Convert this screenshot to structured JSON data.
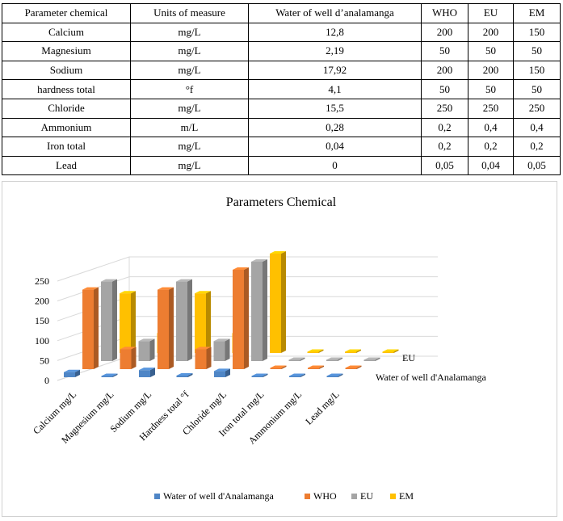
{
  "table": {
    "headers": [
      "Parameter chemical",
      "Units of measure",
      "Water of well d’analamanga",
      "WHO",
      "EU",
      "EM"
    ],
    "rows": [
      [
        "Calcium",
        "mg/L",
        "12,8",
        "200",
        "200",
        "150"
      ],
      [
        "Magnesium",
        "mg/L",
        "2,19",
        "50",
        "50",
        "50"
      ],
      [
        "Sodium",
        "mg/L",
        "17,92",
        "200",
        "200",
        "150"
      ],
      [
        "hardness total",
        "°f",
        "4,1",
        "50",
        "50",
        "50"
      ],
      [
        "Chloride",
        "mg/L",
        "15,5",
        "250",
        "250",
        "250"
      ],
      [
        "Ammonium",
        "m/L",
        "0,28",
        "0,2",
        "0,4",
        "0,4"
      ],
      [
        "Iron total",
        "mg/L",
        "0,04",
        "0,2",
        "0,2",
        "0,2"
      ],
      [
        "Lead",
        "mg/L",
        "0",
        "0,05",
        "0,04",
        "0,05"
      ]
    ]
  },
  "chart_data": {
    "type": "bar",
    "subtype": "3d-clustered-column",
    "title": "Parameters Chemical",
    "categories": [
      "Calcium mg/L",
      "Magnesium mg/L",
      "Sodium mg/L",
      "Hardness total °f",
      "Chloride mg/L",
      "Iron total mg/L",
      "Ammonium mg/L",
      "Lead mg/L"
    ],
    "series": [
      {
        "name": "Water of well d'Analamanga",
        "color": "#4f86c6",
        "values": [
          12.8,
          2.19,
          17.92,
          4.1,
          15.5,
          0.04,
          0.28,
          0
        ]
      },
      {
        "name": "WHO",
        "color": "#ed7d31",
        "values": [
          200,
          50,
          200,
          50,
          250,
          0.2,
          0.2,
          0.05
        ]
      },
      {
        "name": "EU",
        "color": "#a5a5a5",
        "values": [
          200,
          50,
          200,
          50,
          250,
          0.2,
          0.4,
          0.04
        ]
      },
      {
        "name": "EM",
        "color": "#ffc000",
        "values": [
          150,
          50,
          150,
          50,
          250,
          0.2,
          0.4,
          0.05
        ]
      }
    ],
    "depth_axis_labels": [
      "EU",
      "Water of well d'Analamanga"
    ],
    "ylim": [
      0,
      250
    ],
    "yticks": [
      0,
      50,
      100,
      150,
      200,
      250
    ],
    "grid": true,
    "legend": "bottom"
  }
}
